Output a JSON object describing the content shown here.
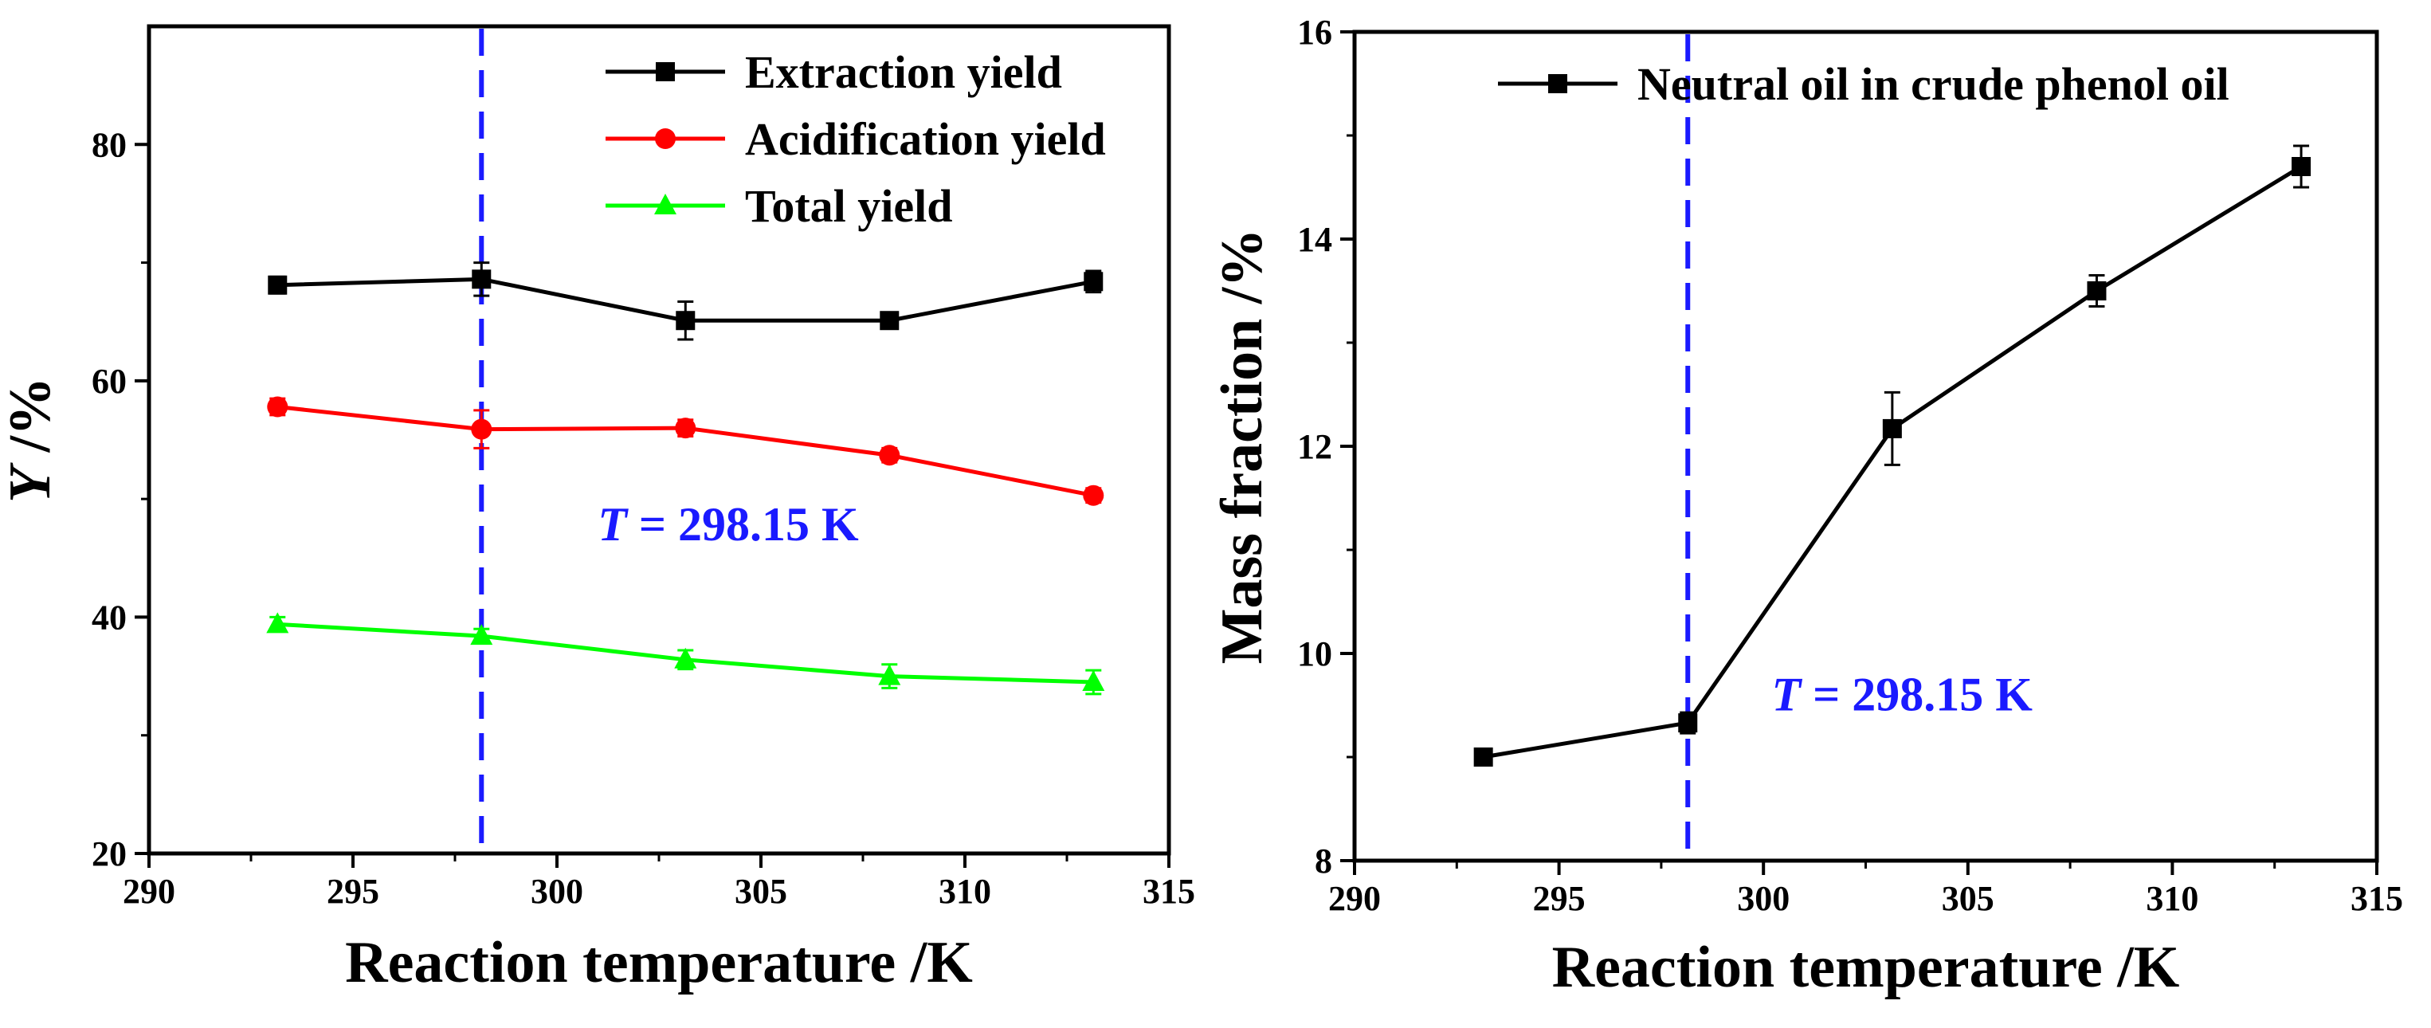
{
  "chart_data": [
    {
      "type": "line",
      "xlabel": "Reaction temperature /K",
      "ylabel": "Y /%",
      "ylabel_italic_part": "Y",
      "ylabel_rest": " /%",
      "xlim": [
        290,
        315
      ],
      "ylim": [
        20,
        90
      ],
      "xticks": [
        290,
        295,
        300,
        305,
        310,
        315
      ],
      "yticks": [
        20,
        40,
        60,
        80
      ],
      "grid": false,
      "legend_position": "top-right",
      "x": [
        293.15,
        298.15,
        303.15,
        308.15,
        313.15
      ],
      "series": [
        {
          "name": "Extraction yield",
          "marker": "square",
          "color": "#000000",
          "values": [
            68.1,
            68.6,
            65.1,
            65.1,
            68.4
          ],
          "errors": [
            0.7,
            1.4,
            1.6,
            0.6,
            0.9
          ]
        },
        {
          "name": "Acidification yield",
          "marker": "circle",
          "color": "#ff0000",
          "values": [
            57.8,
            55.9,
            56.0,
            53.7,
            50.3
          ],
          "errors": [
            0.7,
            1.6,
            0.7,
            0.6,
            0.6
          ]
        },
        {
          "name": "Total yield",
          "marker": "triangle",
          "color": "#00ff00",
          "values": [
            39.4,
            38.4,
            36.4,
            35.0,
            34.5
          ],
          "errors": [
            0.6,
            0.6,
            0.8,
            1.0,
            1.0
          ]
        }
      ],
      "reference_line": {
        "x": 298.15,
        "color": "#1a1aff"
      },
      "annotation": {
        "italic": "T",
        "text": " = 298.15 K",
        "x": 301.0,
        "y": 46.5
      }
    },
    {
      "type": "line",
      "xlabel": "Reaction temperature /K",
      "ylabel": "Mass fraction /%",
      "xlim": [
        290,
        315
      ],
      "ylim": [
        8,
        16
      ],
      "xticks": [
        290,
        295,
        300,
        305,
        310,
        315
      ],
      "yticks": [
        8,
        10,
        12,
        14,
        16
      ],
      "grid": false,
      "legend_position": "top-right",
      "x": [
        293.15,
        298.15,
        303.15,
        308.15,
        313.15
      ],
      "series": [
        {
          "name": "Neutral oil in crude phenol oil",
          "marker": "square",
          "color": "#000000",
          "values": [
            9.0,
            9.33,
            12.17,
            13.5,
            14.7
          ],
          "errors": [
            0.08,
            0.1,
            0.35,
            0.15,
            0.2
          ]
        }
      ],
      "reference_line": {
        "x": 298.15,
        "color": "#1a1aff"
      },
      "annotation": {
        "italic": "T",
        "text": " = 298.15 K",
        "x": 300.2,
        "y": 9.45
      }
    }
  ]
}
